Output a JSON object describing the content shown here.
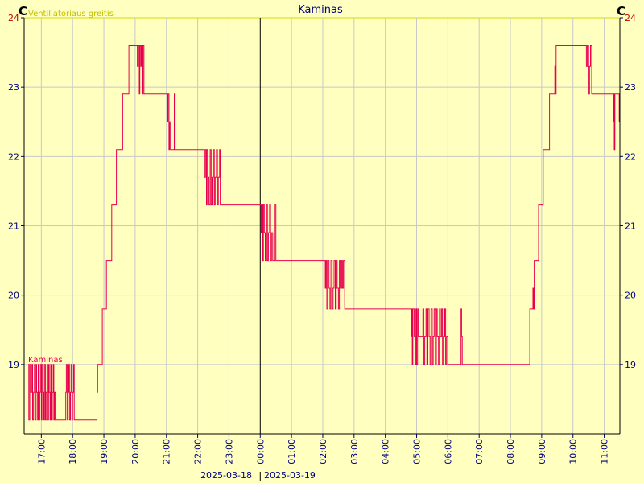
{
  "chart_data": {
    "type": "line",
    "title": "Kaminas",
    "unit_left": "C",
    "unit_right": "C",
    "legend_top": "Ventiliatoriaus greitis",
    "series": [
      {
        "name": "Kaminas",
        "color": "#e8004d",
        "points": [
          [
            16.58,
            19.0
          ],
          [
            16.6,
            18.2
          ],
          [
            16.63,
            19.0
          ],
          [
            16.66,
            18.6
          ],
          [
            16.7,
            19.0
          ],
          [
            16.72,
            18.2
          ],
          [
            16.75,
            18.6
          ],
          [
            16.78,
            19.0
          ],
          [
            16.8,
            18.2
          ],
          [
            16.83,
            19.0
          ],
          [
            16.85,
            18.6
          ],
          [
            16.88,
            18.2
          ],
          [
            16.9,
            19.0
          ],
          [
            16.92,
            18.2
          ],
          [
            16.95,
            18.6
          ],
          [
            16.97,
            19.0
          ],
          [
            17.0,
            18.2
          ],
          [
            17.02,
            19.0
          ],
          [
            17.05,
            18.6
          ],
          [
            17.08,
            18.2
          ],
          [
            17.1,
            19.0
          ],
          [
            17.13,
            18.2
          ],
          [
            17.15,
            18.6
          ],
          [
            17.18,
            19.0
          ],
          [
            17.2,
            18.2
          ],
          [
            17.23,
            19.0
          ],
          [
            17.25,
            18.6
          ],
          [
            17.28,
            18.2
          ],
          [
            17.3,
            19.0
          ],
          [
            17.32,
            18.2
          ],
          [
            17.35,
            18.6
          ],
          [
            17.38,
            19.0
          ],
          [
            17.4,
            18.2
          ],
          [
            17.42,
            18.6
          ],
          [
            17.45,
            18.2
          ],
          [
            17.75,
            18.2
          ],
          [
            17.78,
            18.6
          ],
          [
            17.8,
            19.0
          ],
          [
            17.83,
            18.2
          ],
          [
            17.85,
            18.6
          ],
          [
            17.88,
            19.0
          ],
          [
            17.9,
            18.2
          ],
          [
            17.93,
            18.6
          ],
          [
            17.95,
            19.0
          ],
          [
            17.98,
            18.2
          ],
          [
            18.0,
            18.6
          ],
          [
            18.03,
            19.0
          ],
          [
            18.05,
            18.2
          ],
          [
            18.75,
            18.2
          ],
          [
            18.78,
            18.6
          ],
          [
            18.8,
            19.0
          ],
          [
            18.9,
            19.0
          ],
          [
            18.95,
            19.8
          ],
          [
            19.0,
            19.8
          ],
          [
            19.08,
            20.5
          ],
          [
            19.15,
            20.5
          ],
          [
            19.25,
            21.3
          ],
          [
            19.35,
            21.3
          ],
          [
            19.4,
            22.1
          ],
          [
            19.55,
            22.1
          ],
          [
            19.6,
            22.9
          ],
          [
            19.75,
            22.9
          ],
          [
            19.8,
            23.6
          ],
          [
            20.05,
            23.6
          ],
          [
            20.07,
            23.3
          ],
          [
            20.1,
            23.6
          ],
          [
            20.13,
            22.9
          ],
          [
            20.15,
            23.6
          ],
          [
            20.18,
            23.3
          ],
          [
            20.2,
            23.6
          ],
          [
            20.23,
            22.9
          ],
          [
            20.25,
            23.6
          ],
          [
            20.28,
            22.9
          ],
          [
            21.0,
            22.9
          ],
          [
            21.03,
            22.5
          ],
          [
            21.05,
            22.9
          ],
          [
            21.08,
            22.1
          ],
          [
            21.1,
            22.5
          ],
          [
            21.13,
            22.1
          ],
          [
            21.25,
            22.9
          ],
          [
            21.28,
            22.1
          ],
          [
            22.2,
            22.1
          ],
          [
            22.22,
            21.7
          ],
          [
            22.25,
            22.1
          ],
          [
            22.28,
            21.3
          ],
          [
            22.3,
            22.1
          ],
          [
            22.33,
            21.7
          ],
          [
            22.36,
            21.3
          ],
          [
            22.4,
            22.1
          ],
          [
            22.43,
            21.3
          ],
          [
            22.46,
            21.7
          ],
          [
            22.5,
            22.1
          ],
          [
            22.53,
            21.3
          ],
          [
            22.56,
            21.7
          ],
          [
            22.6,
            22.1
          ],
          [
            22.63,
            21.3
          ],
          [
            22.66,
            21.7
          ],
          [
            22.7,
            22.1
          ],
          [
            22.72,
            21.3
          ],
          [
            24.0,
            21.3
          ],
          [
            24.03,
            20.9
          ],
          [
            24.05,
            21.3
          ],
          [
            24.08,
            20.5
          ],
          [
            24.1,
            21.3
          ],
          [
            24.13,
            20.9
          ],
          [
            24.16,
            20.5
          ],
          [
            24.2,
            21.3
          ],
          [
            24.23,
            20.5
          ],
          [
            24.26,
            20.9
          ],
          [
            24.3,
            21.3
          ],
          [
            24.33,
            20.5
          ],
          [
            24.36,
            20.9
          ],
          [
            24.4,
            20.5
          ],
          [
            24.45,
            21.3
          ],
          [
            24.5,
            20.5
          ],
          [
            26.05,
            20.5
          ],
          [
            26.08,
            20.1
          ],
          [
            26.1,
            20.5
          ],
          [
            26.13,
            19.8
          ],
          [
            26.16,
            20.5
          ],
          [
            26.2,
            20.1
          ],
          [
            26.23,
            19.8
          ],
          [
            26.26,
            20.5
          ],
          [
            26.3,
            19.8
          ],
          [
            26.33,
            20.1
          ],
          [
            26.36,
            20.5
          ],
          [
            26.4,
            19.8
          ],
          [
            26.43,
            20.5
          ],
          [
            26.46,
            20.1
          ],
          [
            26.5,
            19.8
          ],
          [
            26.53,
            20.5
          ],
          [
            26.56,
            20.1
          ],
          [
            26.6,
            20.5
          ],
          [
            26.63,
            20.1
          ],
          [
            26.66,
            20.5
          ],
          [
            26.7,
            19.8
          ],
          [
            28.8,
            19.8
          ],
          [
            28.82,
            19.4
          ],
          [
            28.84,
            19.8
          ],
          [
            28.86,
            19.0
          ],
          [
            28.88,
            19.8
          ],
          [
            28.92,
            19.4
          ],
          [
            28.95,
            19.0
          ],
          [
            28.98,
            19.8
          ],
          [
            29.0,
            19.0
          ],
          [
            29.03,
            19.8
          ],
          [
            29.05,
            19.4
          ],
          [
            29.2,
            19.8
          ],
          [
            29.23,
            19.0
          ],
          [
            29.26,
            19.4
          ],
          [
            29.3,
            19.8
          ],
          [
            29.33,
            19.0
          ],
          [
            29.36,
            19.8
          ],
          [
            29.4,
            19.4
          ],
          [
            29.43,
            19.0
          ],
          [
            29.46,
            19.8
          ],
          [
            29.5,
            19.0
          ],
          [
            29.53,
            19.4
          ],
          [
            29.56,
            19.8
          ],
          [
            29.6,
            19.0
          ],
          [
            29.63,
            19.8
          ],
          [
            29.66,
            19.4
          ],
          [
            29.7,
            19.0
          ],
          [
            29.73,
            19.8
          ],
          [
            29.76,
            19.4
          ],
          [
            29.8,
            19.8
          ],
          [
            29.83,
            19.0
          ],
          [
            29.86,
            19.4
          ],
          [
            29.9,
            19.8
          ],
          [
            29.93,
            19.0
          ],
          [
            29.96,
            19.4
          ],
          [
            30.0,
            19.0
          ],
          [
            30.4,
            19.0
          ],
          [
            30.42,
            19.8
          ],
          [
            30.44,
            19.4
          ],
          [
            30.46,
            19.0
          ],
          [
            32.6,
            19.0
          ],
          [
            32.62,
            19.8
          ],
          [
            32.7,
            19.8
          ],
          [
            32.72,
            20.1
          ],
          [
            32.74,
            19.8
          ],
          [
            32.76,
            20.5
          ],
          [
            32.85,
            20.5
          ],
          [
            32.9,
            21.3
          ],
          [
            33.0,
            21.3
          ],
          [
            33.05,
            22.1
          ],
          [
            33.2,
            22.1
          ],
          [
            33.25,
            22.9
          ],
          [
            33.4,
            22.9
          ],
          [
            33.42,
            23.3
          ],
          [
            33.44,
            22.9
          ],
          [
            33.46,
            23.6
          ],
          [
            34.4,
            23.6
          ],
          [
            34.43,
            23.3
          ],
          [
            34.46,
            23.6
          ],
          [
            34.5,
            22.9
          ],
          [
            34.53,
            23.3
          ],
          [
            34.56,
            23.6
          ],
          [
            34.6,
            22.9
          ],
          [
            35.25,
            22.9
          ],
          [
            35.28,
            22.5
          ],
          [
            35.3,
            22.9
          ],
          [
            35.32,
            22.1
          ],
          [
            35.34,
            22.9
          ],
          [
            35.45,
            22.9
          ],
          [
            35.48,
            22.5
          ]
        ]
      }
    ],
    "ylim": [
      18.0,
      24.0
    ],
    "yticks": [
      19,
      20,
      21,
      22,
      23,
      24
    ],
    "xlim": [
      16.45,
      35.5
    ],
    "xticks": [
      {
        "t": 17,
        "label": "17:00"
      },
      {
        "t": 18,
        "label": "18:00"
      },
      {
        "t": 19,
        "label": "19:00"
      },
      {
        "t": 20,
        "label": "20:00"
      },
      {
        "t": 21,
        "label": "21:00"
      },
      {
        "t": 22,
        "label": "22:00"
      },
      {
        "t": 23,
        "label": "23:00"
      },
      {
        "t": 24,
        "label": "00:00"
      },
      {
        "t": 25,
        "label": "01:00"
      },
      {
        "t": 26,
        "label": "02:00"
      },
      {
        "t": 27,
        "label": "03:00"
      },
      {
        "t": 28,
        "label": "04:00"
      },
      {
        "t": 29,
        "label": "05:00"
      },
      {
        "t": 30,
        "label": "06:00"
      },
      {
        "t": 31,
        "label": "07:00"
      },
      {
        "t": 32,
        "label": "08:00"
      },
      {
        "t": 33,
        "label": "09:00"
      },
      {
        "t": 34,
        "label": "10:00"
      },
      {
        "t": 35,
        "label": "11:00"
      }
    ],
    "date_divider": {
      "t": 24,
      "left_label": "2025-03-18",
      "right_label": "2025-03-19"
    },
    "grid": true,
    "colors": {
      "background": "#ffffc0",
      "grid": "#c8c8c8",
      "axis_text": "#000080",
      "title": "#000080",
      "line": "#e8004d",
      "legend_top": "#c0c000",
      "top_line": "#d8d800"
    }
  }
}
